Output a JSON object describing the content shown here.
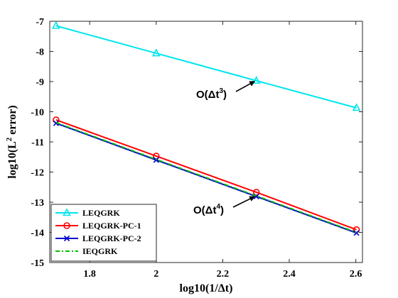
{
  "chart_data": {
    "type": "line",
    "xlabel": "log10(1/Δt)",
    "ylabel_base": "log10(L",
    "ylabel_sup": "2",
    "ylabel_tail": " error)",
    "xlim": [
      1.68,
      2.62
    ],
    "ylim": [
      -15,
      -7
    ],
    "xticks": [
      1.8,
      2,
      2.2,
      2.4,
      2.6
    ],
    "xtick_labels": [
      "1.8",
      "2",
      "2.2",
      "2.4",
      "2.6"
    ],
    "yticks": [
      -15,
      -14,
      -13,
      -12,
      -11,
      -10,
      -9,
      -8,
      -7
    ],
    "ytick_labels": [
      "-15",
      "-14",
      "-13",
      "-12",
      "-11",
      "-10",
      "-9",
      "-8",
      "-7"
    ],
    "grid": false,
    "legend_position": "bottom-left",
    "series": [
      {
        "name": "LEQGRK",
        "x": [
          1.699,
          2.0,
          2.301,
          2.602
        ],
        "y": [
          -7.15,
          -8.06,
          -8.97,
          -9.87
        ],
        "color": "#00e5ee",
        "marker": "triangle",
        "dash": "solid"
      },
      {
        "name": "LEQGRK-PC-1",
        "x": [
          1.699,
          2.0,
          2.301,
          2.602
        ],
        "y": [
          -10.27,
          -11.47,
          -12.67,
          -13.91
        ],
        "color": "#ff0000",
        "marker": "circle",
        "dash": "solid"
      },
      {
        "name": "LEQGRK-PC-2",
        "x": [
          1.699,
          2.0,
          2.301,
          2.602
        ],
        "y": [
          -10.38,
          -11.6,
          -12.81,
          -14.02
        ],
        "color": "#0000cd",
        "marker": "x",
        "dash": "solid"
      },
      {
        "name": "IEQGRK",
        "x": [
          1.699,
          2.0,
          2.301,
          2.602
        ],
        "y": [
          -10.36,
          -11.58,
          -12.79,
          -14.0
        ],
        "color": "#00c000",
        "marker": "none",
        "dash": "dashdot"
      }
    ],
    "annotations": [
      {
        "text_base": "O(Δt",
        "text_sup": "3",
        "text_tail": ")",
        "arrow_to": [
          2.3,
          -8.97
        ]
      },
      {
        "text_base": "O(Δt",
        "text_sup": "4",
        "text_tail": ")",
        "arrow_to": [
          2.3,
          -12.79
        ]
      }
    ]
  }
}
